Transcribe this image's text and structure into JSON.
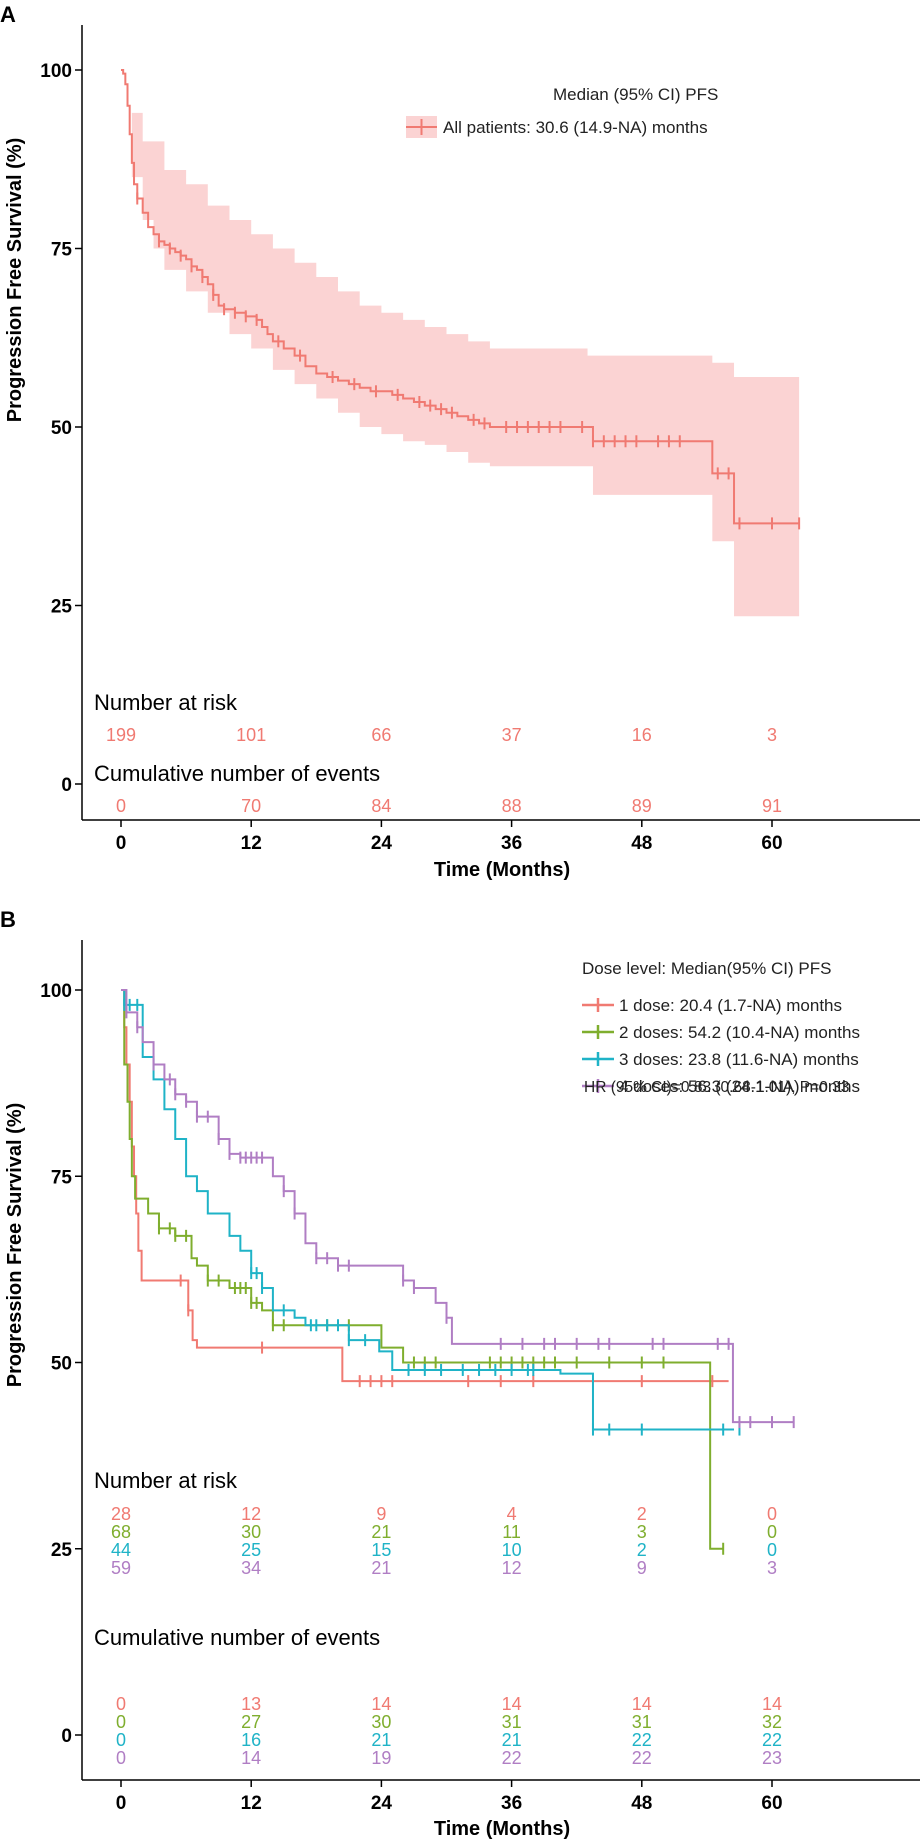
{
  "chart_data": [
    {
      "panel_label": "A",
      "type": "line",
      "subtype": "kaplan-meier",
      "xlabel": "Time (Months)",
      "ylabel": "Progression Free Survival (%)",
      "x_ticks": [
        0,
        12,
        24,
        36,
        48,
        60
      ],
      "y_ticks": [
        0,
        25,
        50,
        75,
        100
      ],
      "xlim": [
        -3.5,
        73
      ],
      "legend_title": "Median (95% CI) PFS",
      "legend_position": "top-right",
      "series": [
        {
          "name": "All patients: 30.6 (14.9-NA) months",
          "color": "#f07a72",
          "ci_color": "#fbd3d3",
          "steps": [
            [
              0,
              100
            ],
            [
              0.2,
              99.5
            ],
            [
              0.4,
              98
            ],
            [
              0.6,
              95
            ],
            [
              0.8,
              91
            ],
            [
              1.0,
              87
            ],
            [
              1.2,
              84
            ],
            [
              1.5,
              82
            ],
            [
              2.0,
              80
            ],
            [
              2.5,
              78
            ],
            [
              3.0,
              77
            ],
            [
              3.5,
              76
            ],
            [
              4.0,
              75.5
            ],
            [
              4.5,
              75
            ],
            [
              5.0,
              74.5
            ],
            [
              5.5,
              74
            ],
            [
              6.0,
              73.5
            ],
            [
              6.5,
              72.5
            ],
            [
              7.0,
              72
            ],
            [
              7.5,
              71
            ],
            [
              8.0,
              70
            ],
            [
              8.5,
              68.5
            ],
            [
              9.0,
              67
            ],
            [
              9.5,
              66.5
            ],
            [
              10.5,
              66
            ],
            [
              11.5,
              65.5
            ],
            [
              12.5,
              65
            ],
            [
              13.0,
              64
            ],
            [
              13.5,
              63
            ],
            [
              14.0,
              62
            ],
            [
              15.0,
              61
            ],
            [
              16.0,
              60
            ],
            [
              17.0,
              58.5
            ],
            [
              18.0,
              57.5
            ],
            [
              19.0,
              57
            ],
            [
              20.0,
              56.5
            ],
            [
              21.0,
              56
            ],
            [
              22.0,
              55.5
            ],
            [
              23.0,
              55
            ],
            [
              25.0,
              54.5
            ],
            [
              26.0,
              54
            ],
            [
              27.0,
              53.5
            ],
            [
              28.0,
              53
            ],
            [
              29.0,
              52.5
            ],
            [
              30.0,
              52
            ],
            [
              31.0,
              51.5
            ],
            [
              32.0,
              51
            ],
            [
              33.0,
              50.5
            ],
            [
              34.0,
              50
            ],
            [
              43.5,
              48
            ],
            [
              54.5,
              43.5
            ],
            [
              56.5,
              36.5
            ],
            [
              62.5,
              36.5
            ]
          ],
          "ci_upper": [
            [
              0,
              100
            ],
            [
              1,
              94
            ],
            [
              2,
              90
            ],
            [
              4,
              86
            ],
            [
              6,
              84
            ],
            [
              8,
              81
            ],
            [
              10,
              79
            ],
            [
              12,
              77
            ],
            [
              14,
              75
            ],
            [
              16,
              73
            ],
            [
              18,
              71
            ],
            [
              20,
              69
            ],
            [
              22,
              67
            ],
            [
              24,
              66
            ],
            [
              26,
              65
            ],
            [
              28,
              64
            ],
            [
              30,
              63
            ],
            [
              32,
              62
            ],
            [
              34,
              61
            ],
            [
              36,
              61
            ],
            [
              43,
              60
            ],
            [
              54.5,
              59
            ],
            [
              56.5,
              57
            ],
            [
              62.5,
              57
            ]
          ],
          "ci_lower": [
            [
              0,
              100
            ],
            [
              1,
              85
            ],
            [
              2,
              79
            ],
            [
              3,
              75
            ],
            [
              4,
              72
            ],
            [
              6,
              69
            ],
            [
              8,
              66
            ],
            [
              10,
              63
            ],
            [
              12,
              61
            ],
            [
              14,
              58
            ],
            [
              16,
              56
            ],
            [
              18,
              54
            ],
            [
              20,
              52
            ],
            [
              22,
              50
            ],
            [
              24,
              49
            ],
            [
              26,
              48
            ],
            [
              28,
              47.5
            ],
            [
              30,
              46.5
            ],
            [
              32,
              45
            ],
            [
              34,
              44.5
            ],
            [
              43.5,
              40.5
            ],
            [
              54.5,
              34
            ],
            [
              56.5,
              23.5
            ],
            [
              62.5,
              23.5
            ]
          ],
          "censor_x": [
            1.5,
            3.5,
            4.5,
            5.5,
            6.5,
            7.5,
            8.5,
            9.5,
            10.5,
            11.5,
            12.5,
            14.5,
            16.5,
            19.5,
            21.5,
            23.5,
            25.5,
            27.5,
            28.5,
            29.5,
            30.5,
            32.5,
            33.5,
            35.5,
            36.5,
            37.5,
            38.5,
            39.5,
            40.5,
            42.5,
            43.5,
            44.5,
            45.5,
            46.5,
            47.5,
            49.5,
            50.5,
            51.5,
            55,
            56,
            57,
            60,
            62.5
          ]
        }
      ],
      "risk_table_title": "Number at risk",
      "risk_table": [
        {
          "series": "All patients",
          "values": [
            "199",
            "101",
            "66",
            "37",
            "16",
            "3"
          ]
        }
      ],
      "events_table_title": "Cumulative number of events",
      "events_table": [
        {
          "series": "All patients",
          "values": [
            "0",
            "70",
            "84",
            "88",
            "89",
            "91"
          ]
        }
      ]
    },
    {
      "panel_label": "B",
      "type": "line",
      "subtype": "kaplan-meier",
      "xlabel": "Time (Months)",
      "ylabel": "Progression Free Survival (%)",
      "x_ticks": [
        0,
        12,
        24,
        36,
        48,
        60
      ],
      "y_ticks": [
        0,
        25,
        50,
        75,
        100
      ],
      "xlim": [
        -3.5,
        73
      ],
      "legend_title": "Dose level: Median(95% CI) PFS",
      "legend_position": "top-right",
      "annotation": "HR (95% CI)=0.83 (0.68-1.01), P=0.33",
      "series": [
        {
          "name": "1 dose:   20.4 (1.7-NA) months",
          "color": "#f07a72",
          "steps": [
            [
              0,
              100
            ],
            [
              0.3,
              95
            ],
            [
              0.5,
              90
            ],
            [
              0.8,
              85
            ],
            [
              1.0,
              79
            ],
            [
              1.2,
              75
            ],
            [
              1.4,
              70
            ],
            [
              1.6,
              65
            ],
            [
              1.9,
              61
            ],
            [
              6.2,
              57
            ],
            [
              6.6,
              53
            ],
            [
              7.0,
              52
            ],
            [
              20.4,
              47.5
            ],
            [
              56,
              47.5
            ]
          ],
          "censor_x": [
            5.5,
            6.2,
            13,
            22,
            23,
            24,
            25,
            32,
            35,
            38,
            48,
            54.5
          ]
        },
        {
          "name": "2 doses: 54.2 (10.4-NA) months",
          "color": "#7fae2e",
          "steps": [
            [
              0,
              100
            ],
            [
              0.3,
              90
            ],
            [
              0.6,
              85
            ],
            [
              0.8,
              80
            ],
            [
              1.0,
              75
            ],
            [
              1.3,
              72
            ],
            [
              2.5,
              70
            ],
            [
              3.5,
              68
            ],
            [
              5,
              67
            ],
            [
              6.5,
              64
            ],
            [
              7,
              63
            ],
            [
              8,
              61
            ],
            [
              10,
              60
            ],
            [
              12,
              58
            ],
            [
              13,
              57
            ],
            [
              14,
              55
            ],
            [
              24,
              52
            ],
            [
              26,
              50
            ],
            [
              54.2,
              50
            ],
            [
              54.3,
              25
            ],
            [
              55.5,
              25
            ]
          ],
          "censor_x": [
            3.5,
            4.5,
            5,
            6,
            8,
            9,
            10.5,
            11,
            11.5,
            12,
            12.5,
            14,
            15,
            19,
            21,
            27,
            28,
            29,
            34,
            35,
            36,
            37,
            38,
            39,
            40,
            42,
            45,
            48,
            50,
            55.5
          ]
        },
        {
          "name": "3 doses: 23.8 (11.6-NA) months",
          "color": "#1fb3c7",
          "steps": [
            [
              0,
              100
            ],
            [
              0.3,
              98
            ],
            [
              1.5,
              98
            ],
            [
              2,
              93
            ],
            [
              2,
              91
            ],
            [
              3,
              88
            ],
            [
              4,
              84
            ],
            [
              5,
              80
            ],
            [
              6,
              75
            ],
            [
              7,
              73
            ],
            [
              8,
              70
            ],
            [
              10,
              67
            ],
            [
              11,
              65
            ],
            [
              12,
              62
            ],
            [
              13,
              60
            ],
            [
              14,
              57
            ],
            [
              16,
              56
            ],
            [
              17,
              55
            ],
            [
              21,
              53
            ],
            [
              23.8,
              51.5
            ],
            [
              25,
              49
            ],
            [
              40.5,
              48.5
            ],
            [
              43.5,
              41
            ],
            [
              56.5,
              41
            ]
          ],
          "censor_x": [
            0.3,
            0.8,
            1.5,
            12,
            12.5,
            13,
            15,
            17.5,
            18,
            19,
            20,
            21,
            22.5,
            26.5,
            28,
            29.5,
            31.5,
            33,
            34.5,
            36,
            37.5,
            38,
            43.5,
            45,
            48,
            55.5,
            57
          ]
        },
        {
          "name": "4 doses: 56.3 (24.1-NA) months",
          "color": "#b07ec4",
          "steps": [
            [
              0,
              100
            ],
            [
              0.5,
              97
            ],
            [
              1.5,
              95
            ],
            [
              2,
              93
            ],
            [
              3,
              90
            ],
            [
              4,
              88
            ],
            [
              5,
              86
            ],
            [
              6,
              85
            ],
            [
              7,
              83
            ],
            [
              9,
              80
            ],
            [
              10,
              78
            ],
            [
              11,
              77.5
            ],
            [
              14,
              75
            ],
            [
              15,
              73
            ],
            [
              16,
              70
            ],
            [
              17,
              66
            ],
            [
              18,
              64
            ],
            [
              20,
              63
            ],
            [
              26,
              61
            ],
            [
              27,
              60
            ],
            [
              29,
              58
            ],
            [
              30,
              56
            ],
            [
              30.5,
              52.5
            ],
            [
              56.3,
              52.5
            ],
            [
              56.4,
              42
            ],
            [
              62,
              42
            ]
          ],
          "censor_x": [
            0.5,
            1.5,
            3,
            4.5,
            5,
            6,
            7,
            8,
            9,
            10,
            11,
            11.5,
            12,
            12.5,
            13,
            15,
            16,
            18,
            19,
            20,
            21,
            26,
            27,
            30,
            35,
            37,
            39,
            40,
            42,
            44,
            45,
            49,
            50,
            55,
            56,
            57,
            58,
            60,
            62
          ]
        }
      ],
      "risk_table_title": "Number at risk",
      "risk_table": [
        {
          "series": "1 dose",
          "values": [
            "28",
            "12",
            "9",
            "4",
            "2",
            "0"
          ]
        },
        {
          "series": "2 doses",
          "values": [
            "68",
            "30",
            "21",
            "11",
            "3",
            "0"
          ]
        },
        {
          "series": "3 doses",
          "values": [
            "44",
            "25",
            "15",
            "10",
            "2",
            "0"
          ]
        },
        {
          "series": "4 doses",
          "values": [
            "59",
            "34",
            "21",
            "12",
            "9",
            "3"
          ]
        }
      ],
      "events_table_title": "Cumulative number of events",
      "events_table": [
        {
          "series": "1 dose",
          "values": [
            "0",
            "13",
            "14",
            "14",
            "14",
            "14"
          ]
        },
        {
          "series": "2 doses",
          "values": [
            "0",
            "27",
            "30",
            "31",
            "31",
            "32"
          ]
        },
        {
          "series": "3 doses",
          "values": [
            "0",
            "16",
            "21",
            "21",
            "22",
            "22"
          ]
        },
        {
          "series": "4 doses",
          "values": [
            "0",
            "14",
            "19",
            "22",
            "22",
            "23"
          ]
        }
      ]
    }
  ]
}
